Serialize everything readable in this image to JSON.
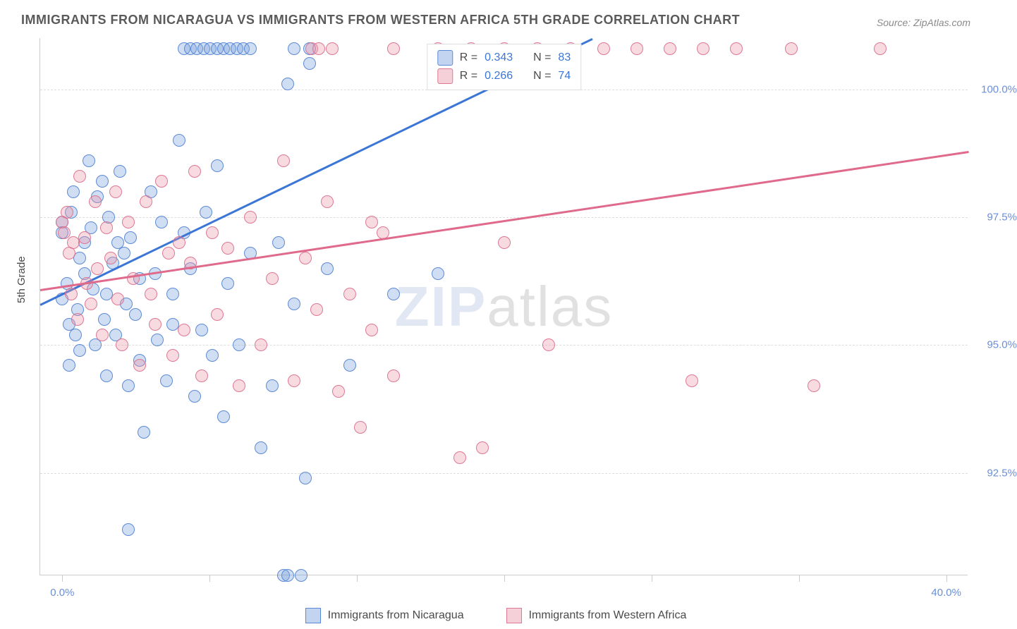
{
  "title": "IMMIGRANTS FROM NICARAGUA VS IMMIGRANTS FROM WESTERN AFRICA 5TH GRADE CORRELATION CHART",
  "source": "Source: ZipAtlas.com",
  "ylabel": "5th Grade",
  "watermark": {
    "bold": "ZIP",
    "rest": "atlas"
  },
  "chart": {
    "type": "scatter",
    "background_color": "#ffffff",
    "grid_color": "#dddddd",
    "xlim": [
      -1,
      41
    ],
    "ylim": [
      90.5,
      101
    ],
    "xticks": [
      0,
      40
    ],
    "xtick_labels": [
      "0.0%",
      "40.0%"
    ],
    "xtick_majors": [
      0,
      6.67,
      13.33,
      20,
      26.67,
      33.33,
      40
    ],
    "yticks": [
      92.5,
      95.0,
      97.5,
      100.0
    ],
    "ytick_labels": [
      "92.5%",
      "95.0%",
      "97.5%",
      "100.0%"
    ],
    "series": [
      {
        "name": "Immigrants from Nicaragua",
        "color_fill": "rgba(120,160,220,0.35)",
        "color_stroke": "rgba(80,130,210,0.9)",
        "line_color": "#3b76d6",
        "R": "0.343",
        "N": "83",
        "trend": {
          "x1": -1,
          "y1": 95.8,
          "x2": 24,
          "y2": 101
        },
        "points": [
          [
            0,
            95.9
          ],
          [
            0,
            97.4
          ],
          [
            0,
            97.2
          ],
          [
            0.2,
            96.2
          ],
          [
            0.3,
            95.4
          ],
          [
            0.3,
            94.6
          ],
          [
            0.4,
            97.6
          ],
          [
            0.5,
            98.0
          ],
          [
            0.6,
            95.2
          ],
          [
            0.7,
            95.7
          ],
          [
            0.8,
            96.7
          ],
          [
            0.8,
            94.9
          ],
          [
            1.0,
            96.4
          ],
          [
            1.0,
            97.0
          ],
          [
            1.2,
            98.6
          ],
          [
            1.3,
            97.3
          ],
          [
            1.4,
            96.1
          ],
          [
            1.5,
            95.0
          ],
          [
            1.6,
            97.9
          ],
          [
            1.8,
            98.2
          ],
          [
            1.9,
            95.5
          ],
          [
            2.0,
            96.0
          ],
          [
            2.0,
            94.4
          ],
          [
            2.1,
            97.5
          ],
          [
            2.3,
            96.6
          ],
          [
            2.4,
            95.2
          ],
          [
            2.5,
            97.0
          ],
          [
            2.6,
            98.4
          ],
          [
            2.8,
            96.8
          ],
          [
            2.9,
            95.8
          ],
          [
            3.0,
            94.2
          ],
          [
            3.1,
            97.1
          ],
          [
            3.3,
            95.6
          ],
          [
            3.5,
            96.3
          ],
          [
            3.5,
            94.7
          ],
          [
            3.7,
            93.3
          ],
          [
            4.0,
            98.0
          ],
          [
            4.2,
            96.4
          ],
          [
            4.3,
            95.1
          ],
          [
            4.5,
            97.4
          ],
          [
            4.7,
            94.3
          ],
          [
            5.0,
            96.0
          ],
          [
            5.0,
            95.4
          ],
          [
            5.3,
            99.0
          ],
          [
            5.5,
            97.2
          ],
          [
            5.8,
            96.5
          ],
          [
            6.0,
            94.0
          ],
          [
            6.3,
            95.3
          ],
          [
            6.5,
            97.6
          ],
          [
            6.8,
            94.8
          ],
          [
            7.0,
            98.5
          ],
          [
            7.3,
            93.6
          ],
          [
            7.5,
            96.2
          ],
          [
            8.0,
            95.0
          ],
          [
            8.5,
            96.8
          ],
          [
            9.0,
            93.0
          ],
          [
            9.5,
            94.2
          ],
          [
            9.8,
            97.0
          ],
          [
            10.0,
            90.5
          ],
          [
            10.5,
            95.8
          ],
          [
            11.0,
            92.4
          ],
          [
            12.0,
            96.5
          ],
          [
            13.0,
            94.6
          ],
          [
            15.0,
            96.0
          ],
          [
            17.0,
            96.4
          ],
          [
            3.0,
            91.4
          ],
          [
            5.5,
            100.8
          ],
          [
            5.8,
            100.8
          ],
          [
            6.1,
            100.8
          ],
          [
            6.4,
            100.8
          ],
          [
            6.7,
            100.8
          ],
          [
            7.0,
            100.8
          ],
          [
            7.3,
            100.8
          ],
          [
            7.6,
            100.8
          ],
          [
            7.9,
            100.8
          ],
          [
            8.2,
            100.8
          ],
          [
            8.5,
            100.8
          ],
          [
            10.2,
            100.1
          ],
          [
            10.2,
            90.5
          ],
          [
            10.8,
            90.5
          ],
          [
            10.5,
            100.8
          ],
          [
            11.2,
            100.8
          ],
          [
            11.2,
            100.5
          ]
        ]
      },
      {
        "name": "Immigrants from Western Africa",
        "color_fill": "rgba(235,150,170,0.35)",
        "color_stroke": "rgba(220,110,140,0.9)",
        "line_color": "#e06a8c",
        "R": "0.266",
        "N": "74",
        "trend": {
          "x1": -1,
          "y1": 96.1,
          "x2": 41,
          "y2": 98.8
        },
        "points": [
          [
            0,
            97.4
          ],
          [
            0.1,
            97.2
          ],
          [
            0.2,
            97.6
          ],
          [
            0.3,
            96.8
          ],
          [
            0.4,
            96.0
          ],
          [
            0.5,
            97.0
          ],
          [
            0.7,
            95.5
          ],
          [
            0.8,
            98.3
          ],
          [
            1.0,
            97.1
          ],
          [
            1.1,
            96.2
          ],
          [
            1.3,
            95.8
          ],
          [
            1.5,
            97.8
          ],
          [
            1.6,
            96.5
          ],
          [
            1.8,
            95.2
          ],
          [
            2.0,
            97.3
          ],
          [
            2.2,
            96.7
          ],
          [
            2.4,
            98.0
          ],
          [
            2.5,
            95.9
          ],
          [
            2.7,
            95.0
          ],
          [
            3.0,
            97.4
          ],
          [
            3.2,
            96.3
          ],
          [
            3.5,
            94.6
          ],
          [
            3.8,
            97.8
          ],
          [
            4.0,
            96.0
          ],
          [
            4.2,
            95.4
          ],
          [
            4.5,
            98.2
          ],
          [
            4.8,
            96.8
          ],
          [
            5.0,
            94.8
          ],
          [
            5.3,
            97.0
          ],
          [
            5.5,
            95.3
          ],
          [
            5.8,
            96.6
          ],
          [
            6.0,
            98.4
          ],
          [
            6.3,
            94.4
          ],
          [
            6.8,
            97.2
          ],
          [
            7.0,
            95.6
          ],
          [
            7.5,
            96.9
          ],
          [
            8.0,
            94.2
          ],
          [
            8.5,
            97.5
          ],
          [
            9.0,
            95.0
          ],
          [
            9.5,
            96.3
          ],
          [
            10.0,
            98.6
          ],
          [
            10.5,
            94.3
          ],
          [
            11.0,
            96.7
          ],
          [
            11.5,
            95.7
          ],
          [
            12.0,
            97.8
          ],
          [
            12.5,
            94.1
          ],
          [
            13.0,
            96.0
          ],
          [
            13.5,
            93.4
          ],
          [
            14.0,
            95.3
          ],
          [
            14.5,
            97.2
          ],
          [
            15.0,
            94.4
          ],
          [
            18.0,
            92.8
          ],
          [
            20.0,
            97.0
          ],
          [
            22.0,
            95.0
          ],
          [
            11.3,
            100.8
          ],
          [
            11.6,
            100.8
          ],
          [
            12.2,
            100.8
          ],
          [
            15.0,
            100.8
          ],
          [
            17.0,
            100.8
          ],
          [
            18.5,
            100.8
          ],
          [
            20.0,
            100.8
          ],
          [
            21.5,
            100.8
          ],
          [
            23.0,
            100.8
          ],
          [
            24.5,
            100.8
          ],
          [
            26.0,
            100.8
          ],
          [
            27.5,
            100.8
          ],
          [
            29.0,
            100.8
          ],
          [
            30.5,
            100.8
          ],
          [
            33.0,
            100.8
          ],
          [
            37.0,
            100.8
          ],
          [
            34.0,
            94.2
          ],
          [
            28.5,
            94.3
          ],
          [
            19.0,
            93.0
          ],
          [
            14.0,
            97.4
          ]
        ]
      }
    ]
  },
  "legend": {
    "r_label": "R =",
    "n_label": "N ="
  },
  "colors": {
    "title": "#5a5a5a",
    "source": "#8a8a8a",
    "tick": "#6b8fd6",
    "value": "#3b76d6"
  }
}
